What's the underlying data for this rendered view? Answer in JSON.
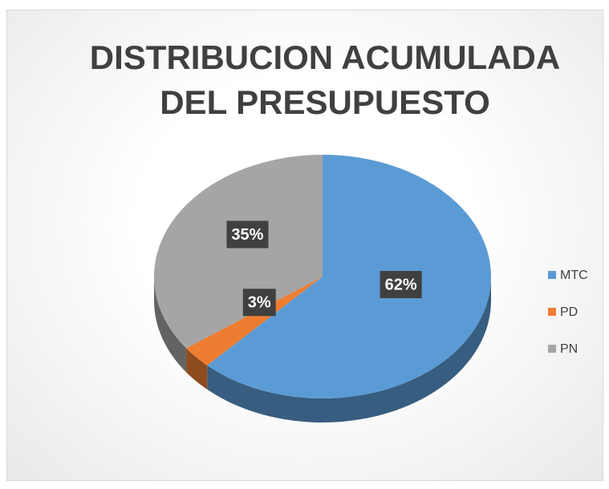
{
  "chart_data": {
    "type": "pie",
    "title": "DISTRIBUCION ACUMULADA DEL PRESUPUESTO",
    "categories": [
      "MTC",
      "PD",
      "PN"
    ],
    "values": [
      62,
      3,
      35
    ],
    "value_labels": [
      "62%",
      "3%",
      "35%"
    ],
    "colors": [
      "#5b9bd5",
      "#ed7d31",
      "#a5a5a5"
    ],
    "legend": "right"
  }
}
